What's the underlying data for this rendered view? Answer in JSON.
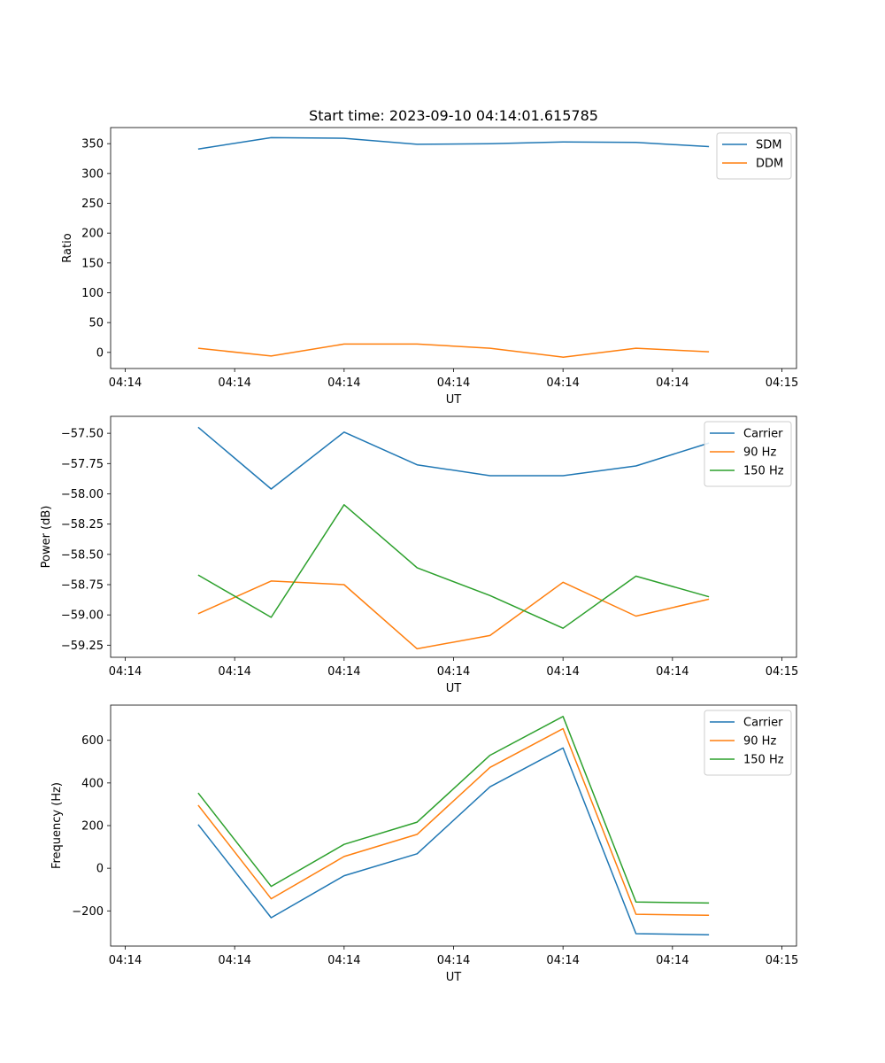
{
  "chart_data": [
    {
      "type": "line",
      "title": "Start time: 2023-09-10 04:14:01.615785",
      "xlabel": "UT",
      "ylabel": "Ratio",
      "x": [
        0.5,
        1,
        1.5,
        2,
        2.5,
        3,
        3.5,
        4
      ],
      "xlim": [
        -0.1,
        4.6
      ],
      "x_ticks": [
        0,
        0.75,
        1.5,
        2.25,
        3,
        3.75,
        4.5
      ],
      "x_tick_labels": [
        "04:14",
        "04:14",
        "04:14",
        "04:14",
        "04:14",
        "04:14",
        "04:15"
      ],
      "ylim": [
        -27,
        377
      ],
      "y_ticks": [
        0,
        50,
        100,
        150,
        200,
        250,
        300,
        350
      ],
      "y_tick_labels": [
        "0",
        "50",
        "100",
        "150",
        "200",
        "250",
        "300",
        "350"
      ],
      "legend_position": "top-right",
      "series": [
        {
          "name": "SDM",
          "color": "#1f77b4",
          "values": [
            341,
            360,
            359,
            349,
            350,
            353,
            352,
            345
          ]
        },
        {
          "name": "DDM",
          "color": "#ff7f0e",
          "values": [
            7,
            -6,
            14,
            14,
            7,
            -8,
            7,
            1
          ]
        }
      ]
    },
    {
      "type": "line",
      "title": "",
      "xlabel": "UT",
      "ylabel": "Power (dB)",
      "x": [
        0.5,
        1,
        1.5,
        2,
        2.5,
        3,
        3.5,
        4
      ],
      "xlim": [
        -0.1,
        4.6
      ],
      "x_ticks": [
        0,
        0.75,
        1.5,
        2.25,
        3,
        3.75,
        4.5
      ],
      "x_tick_labels": [
        "04:14",
        "04:14",
        "04:14",
        "04:14",
        "04:14",
        "04:14",
        "04:15"
      ],
      "ylim": [
        -59.35,
        -57.36
      ],
      "y_ticks": [
        -59.25,
        -59.0,
        -58.75,
        -58.5,
        -58.25,
        -58.0,
        -57.75,
        -57.5
      ],
      "y_tick_labels": [
        "−59.25",
        "−59.00",
        "−58.75",
        "−58.50",
        "−58.25",
        "−58.00",
        "−57.75",
        "−57.50"
      ],
      "legend_position": "top-right",
      "series": [
        {
          "name": "Carrier",
          "color": "#1f77b4",
          "values": [
            -57.45,
            -57.96,
            -57.49,
            -57.76,
            -57.85,
            -57.85,
            -57.77,
            -57.58
          ]
        },
        {
          "name": "90 Hz",
          "color": "#ff7f0e",
          "values": [
            -58.99,
            -58.72,
            -58.75,
            -59.28,
            -59.17,
            -58.73,
            -59.01,
            -58.87
          ]
        },
        {
          "name": "150 Hz",
          "color": "#2ca02c",
          "values": [
            -58.67,
            -59.02,
            -58.09,
            -58.61,
            -58.84,
            -59.11,
            -58.68,
            -58.85
          ]
        }
      ]
    },
    {
      "type": "line",
      "title": "",
      "xlabel": "UT",
      "ylabel": "Frequency (Hz)",
      "x": [
        0.5,
        1,
        1.5,
        2,
        2.5,
        3,
        3.5,
        4
      ],
      "xlim": [
        -0.1,
        4.6
      ],
      "x_ticks": [
        0,
        0.75,
        1.5,
        2.25,
        3,
        3.75,
        4.5
      ],
      "x_tick_labels": [
        "04:14",
        "04:14",
        "04:14",
        "04:14",
        "04:14",
        "04:14",
        "04:15"
      ],
      "ylim": [
        -365,
        765
      ],
      "y_ticks": [
        -200,
        0,
        200,
        400,
        600
      ],
      "y_tick_labels": [
        "−200",
        "0",
        "200",
        "400",
        "600"
      ],
      "legend_position": "top-right",
      "series": [
        {
          "name": "Carrier",
          "color": "#1f77b4",
          "values": [
            205,
            -232,
            -35,
            68,
            382,
            564,
            -307,
            -312
          ]
        },
        {
          "name": "90 Hz",
          "color": "#ff7f0e",
          "values": [
            296,
            -143,
            55,
            159,
            473,
            655,
            -216,
            -221
          ]
        },
        {
          "name": "150 Hz",
          "color": "#2ca02c",
          "values": [
            353,
            -85,
            112,
            216,
            530,
            712,
            -158,
            -163
          ]
        }
      ]
    }
  ]
}
